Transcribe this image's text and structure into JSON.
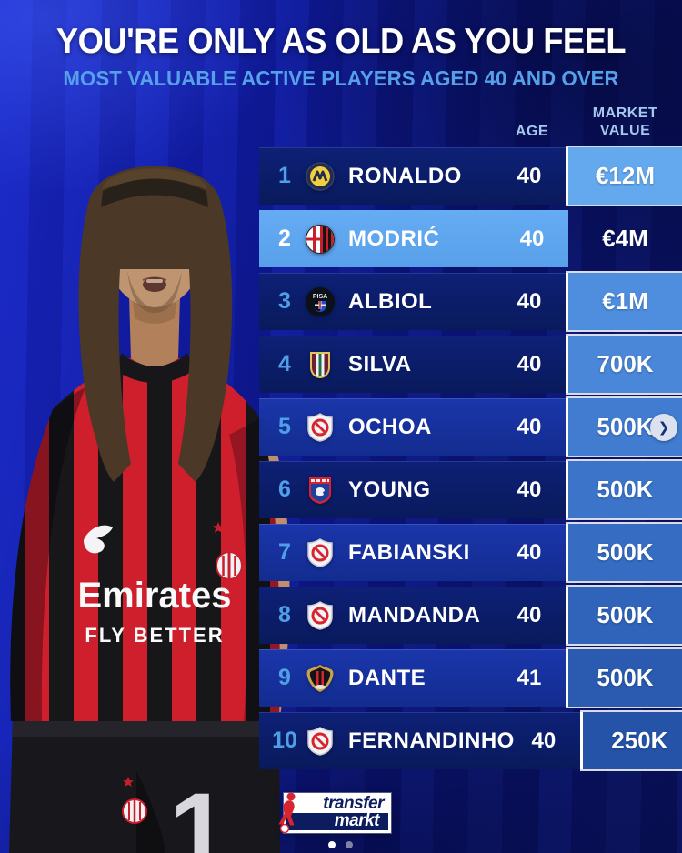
{
  "title": "YOU'RE ONLY AS OLD AS YOU FEEL",
  "subtitle": "MOST VALUABLE ACTIVE PLAYERS AGED 40 AND OVER",
  "columns": {
    "age": "AGE",
    "market_l1": "MARKET",
    "market_l2": "VALUE"
  },
  "rows": [
    {
      "rank": "1",
      "club_icon": "al-nassr",
      "player": "RONALDO",
      "age": "40",
      "value": "€12M",
      "shade": "dark",
      "value_bg": "#64a9ee"
    },
    {
      "rank": "2",
      "club_icon": "ac-milan",
      "player": "MODRIĆ",
      "age": "40",
      "value": "€4M",
      "shade": "highlight",
      "value_bg": "#5fa7ef"
    },
    {
      "rank": "3",
      "club_icon": "pisa",
      "player": "ALBIOL",
      "age": "40",
      "value": "€1M",
      "shade": "dark",
      "value_bg": "#4f8edf"
    },
    {
      "rank": "4",
      "club_icon": "fluminense",
      "player": "SILVA",
      "age": "40",
      "value": "700K",
      "shade": "dark",
      "value_bg": "#4a87d9"
    },
    {
      "rank": "5",
      "club_icon": "no-club",
      "player": "OCHOA",
      "age": "40",
      "value": "500K",
      "shade": "medium",
      "value_bg": "#417cd1",
      "has_arrow": true
    },
    {
      "rank": "6",
      "club_icon": "ipswich",
      "player": "YOUNG",
      "age": "40",
      "value": "500K",
      "shade": "dark",
      "value_bg": "#3b74c9"
    },
    {
      "rank": "7",
      "club_icon": "no-club",
      "player": "FABIANSKI",
      "age": "40",
      "value": "500K",
      "shade": "medium",
      "value_bg": "#366cc2"
    },
    {
      "rank": "8",
      "club_icon": "no-club",
      "player": "MANDANDA",
      "age": "40",
      "value": "500K",
      "shade": "dark",
      "value_bg": "#3064ba"
    },
    {
      "rank": "9",
      "club_icon": "nice",
      "player": "DANTE",
      "age": "41",
      "value": "500K",
      "shade": "medium",
      "value_bg": "#2a5bb1"
    },
    {
      "rank": "10",
      "club_icon": "no-club",
      "player": "FERNANDINHO",
      "age": "40",
      "value": "250K",
      "shade": "dark",
      "value_bg": "#2553a8"
    }
  ],
  "jersey": {
    "sponsor_line1": "Emirates",
    "sponsor_line2": "FLY BETTER",
    "shorts_number": "1"
  },
  "logo": {
    "line1": "transfer",
    "line2": "markt"
  },
  "pagination": [
    "active",
    "inactive"
  ],
  "icons": {
    "next_arrow": "❯"
  },
  "colors": {
    "accent_highlight": "#5fa7ef",
    "row_dark": "#0b1d6b",
    "row_medium": "#16329f",
    "rank_blue": "#4f9fe8",
    "subtitle_blue": "#55a0e8",
    "header_blue": "#a6c8ee",
    "jersey_red": "#cf1f2c",
    "jersey_black": "#17171a"
  }
}
